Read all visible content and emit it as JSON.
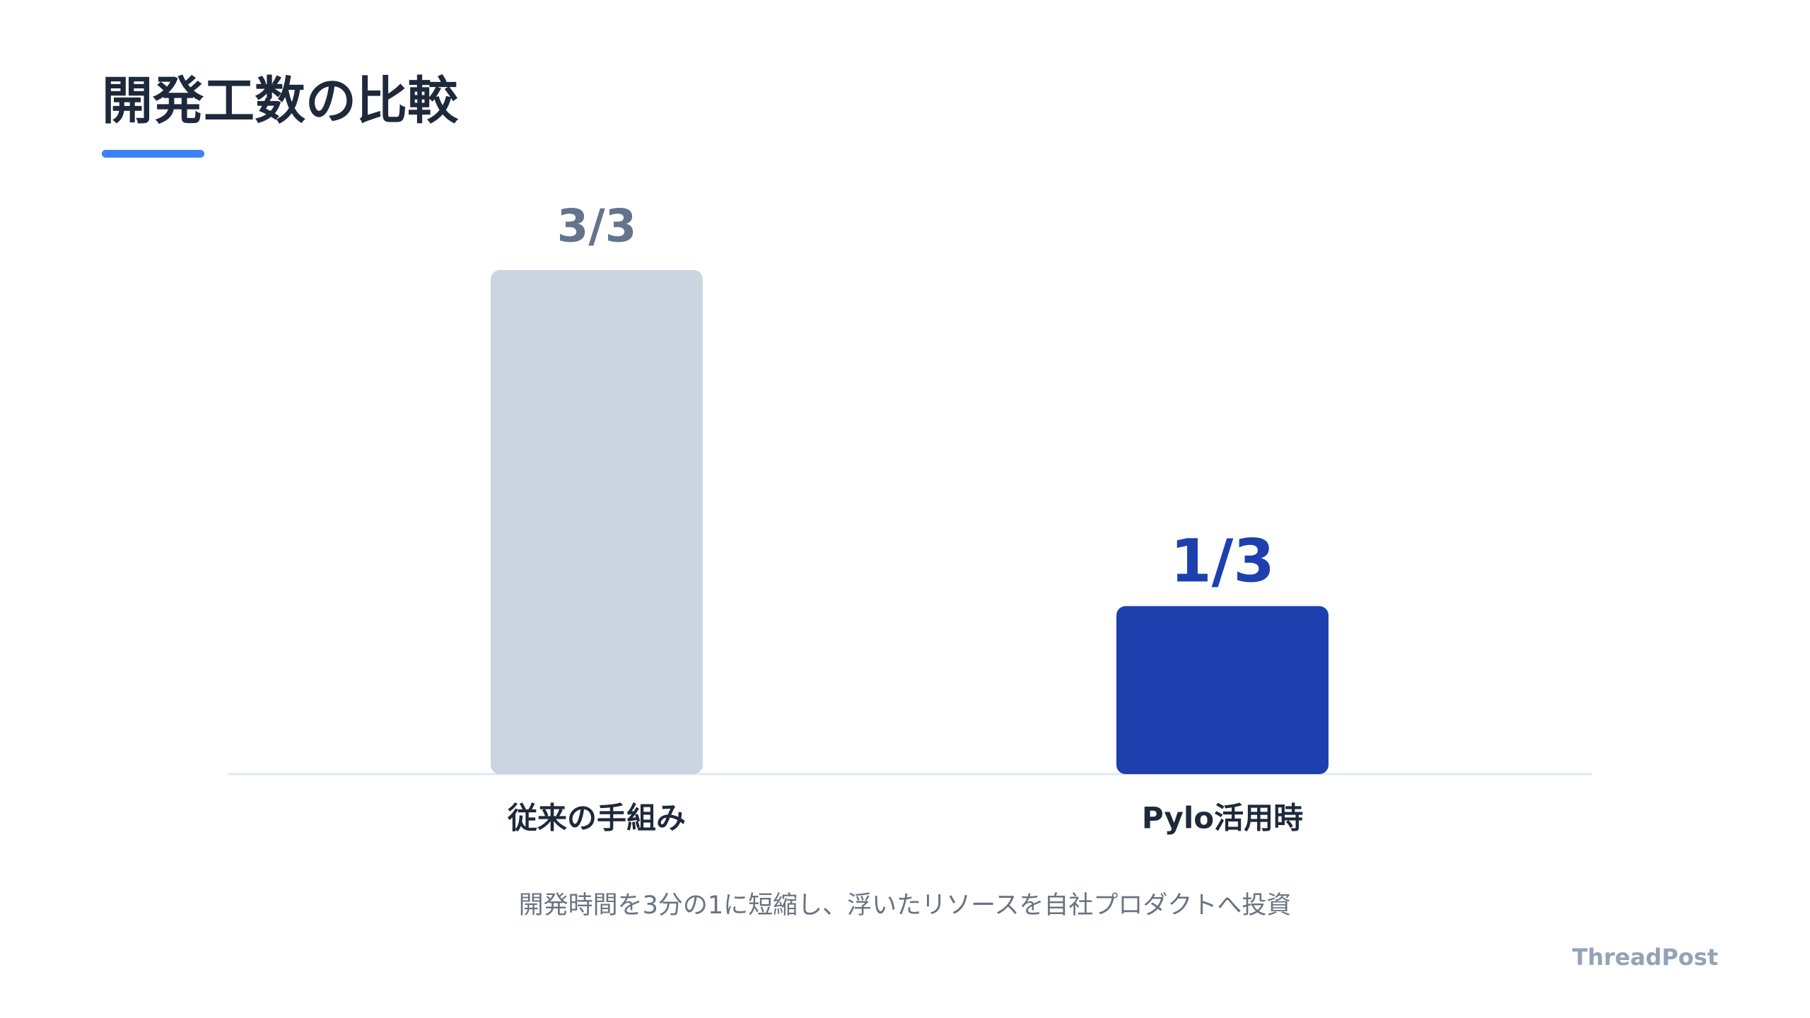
{
  "chart_data": {
    "type": "bar",
    "title": "開発工数の比較",
    "categories": [
      "従来の手組み",
      "Pylo活用時"
    ],
    "values": [
      1,
      0.3333
    ],
    "value_labels": [
      "3/3",
      "1/3"
    ],
    "colors": [
      "#cbd5e1",
      "#1e40af"
    ],
    "label_colors": [
      "#64748b",
      "#1e40af"
    ],
    "ylim": [
      0,
      1
    ],
    "caption": "開発時間を3分の1に短縮し、浮いたリソースを自社プロダクトへ投資",
    "watermark": "ThreadPost"
  }
}
